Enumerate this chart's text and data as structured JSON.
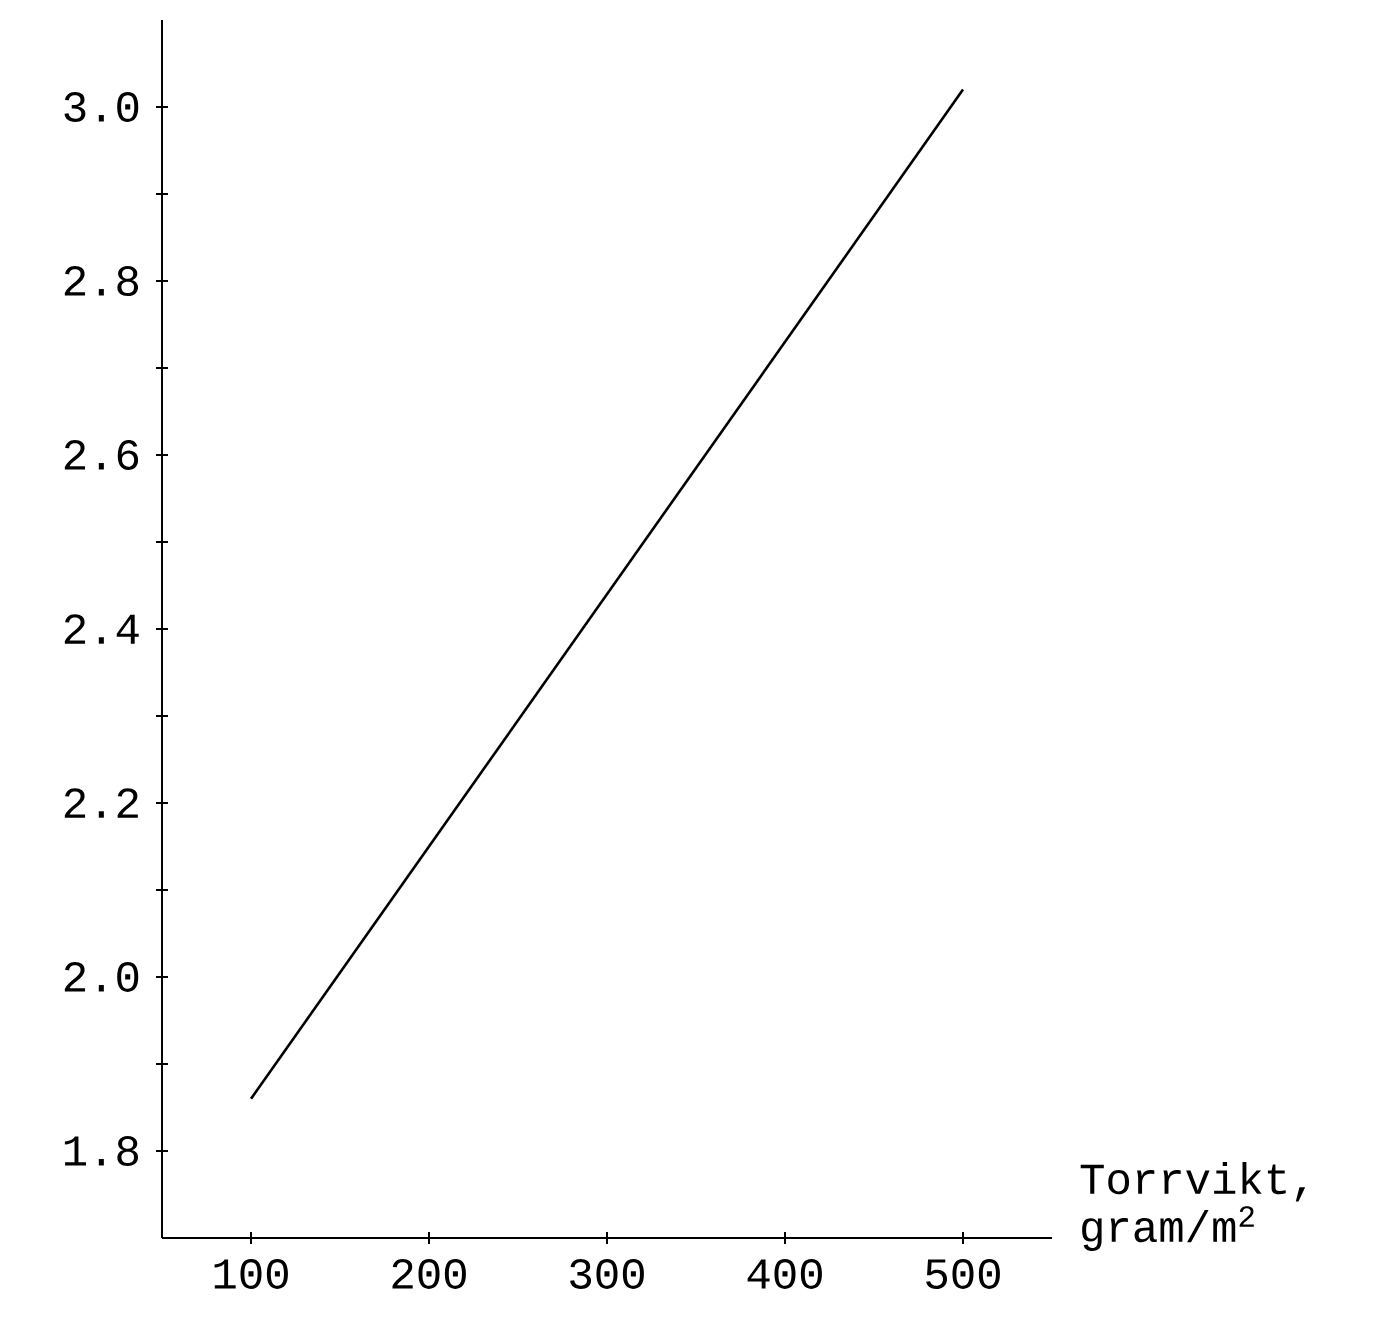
{
  "chart_data": {
    "type": "line",
    "xlabel": "Torrvikt, gram/m$^{2}$",
    "x": [
      100,
      500
    ],
    "series": [
      {
        "color": "#000000",
        "values": [
          1.86,
          3.02
        ]
      }
    ],
    "xlim": [
      50,
      550
    ],
    "ylim": [
      1.7,
      3.1
    ],
    "xticks": [
      100,
      200,
      300,
      400,
      500
    ],
    "yticks": [
      {
        "value": 1.8,
        "label": "1.8"
      },
      {
        "value": 1.9,
        "label": null
      },
      {
        "value": 2.0,
        "label": "2.0"
      },
      {
        "value": 2.1,
        "label": null
      },
      {
        "value": 2.2,
        "label": "2.2"
      },
      {
        "value": 2.3,
        "label": null
      },
      {
        "value": 2.4,
        "label": "2.4"
      },
      {
        "value": 2.5,
        "label": null
      },
      {
        "value": 2.6,
        "label": "2.6"
      },
      {
        "value": 2.7,
        "label": null
      },
      {
        "value": 2.8,
        "label": "2.8"
      },
      {
        "value": 2.9,
        "label": null
      },
      {
        "value": 3.0,
        "label": "3.0"
      }
    ],
    "marker": "none",
    "line_style": "solid",
    "grid": false
  }
}
